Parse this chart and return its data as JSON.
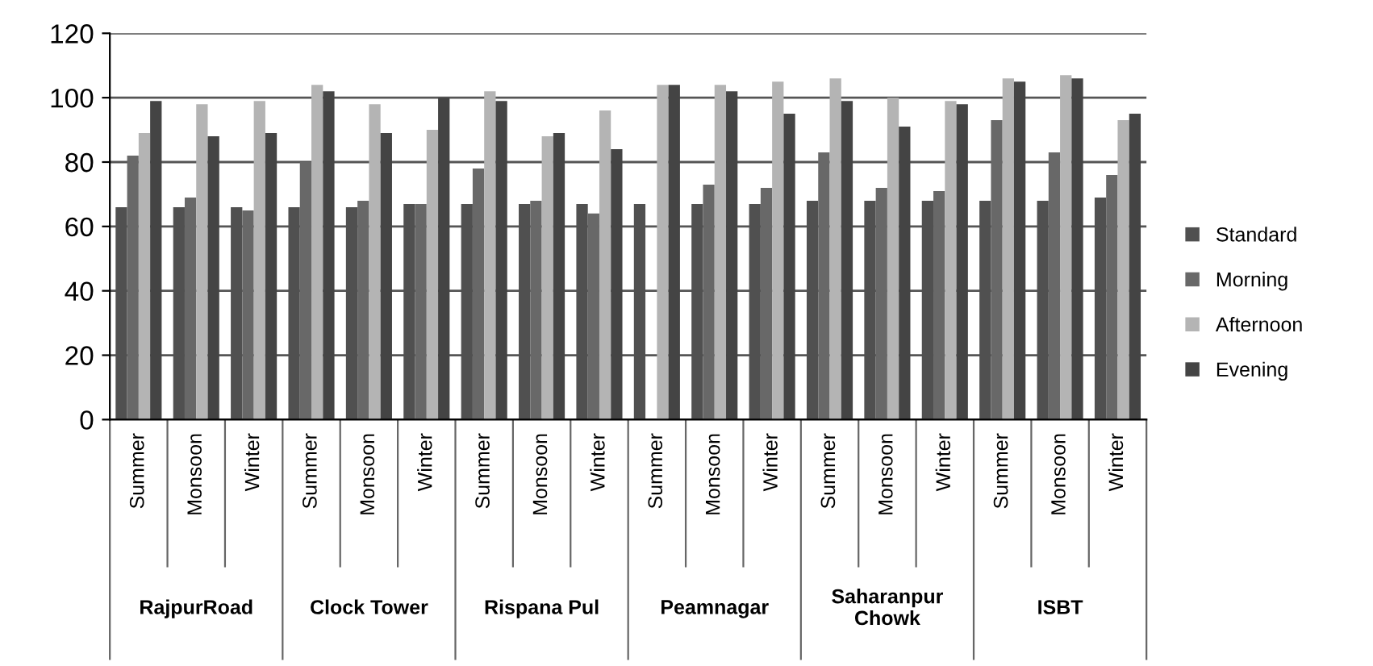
{
  "chart_data": {
    "type": "bar",
    "categories": [
      "Summer",
      "Monsoon",
      "Winter",
      "Summer",
      "Monsoon",
      "Winter",
      "Summer",
      "Monsoon",
      "Winter",
      "Summer",
      "Monsoon",
      "Winter",
      "Summer",
      "Monsoon",
      "Winter",
      "Summer",
      "Monsoon",
      "Winter"
    ],
    "series": [
      {
        "name": "Standard",
        "color": "#505050",
        "values": [
          66,
          66,
          66,
          66,
          66,
          67,
          67,
          67,
          67,
          67,
          67,
          67,
          68,
          68,
          68,
          68,
          68,
          69
        ]
      },
      {
        "name": "Morning",
        "color": "#686868",
        "values": [
          82,
          69,
          65,
          80,
          68,
          67,
          78,
          68,
          64,
          null,
          73,
          72,
          83,
          72,
          71,
          93,
          83,
          76
        ]
      },
      {
        "name": "Afternoon",
        "color": "#b4b4b4",
        "values": [
          89,
          98,
          99,
          104,
          98,
          90,
          102,
          88,
          96,
          104,
          104,
          105,
          106,
          100,
          99,
          106,
          107,
          93
        ]
      },
      {
        "name": "Evening",
        "color": "#444444",
        "values": [
          99,
          88,
          89,
          102,
          89,
          100,
          99,
          89,
          84,
          104,
          102,
          95,
          99,
          91,
          98,
          105,
          106,
          95
        ]
      }
    ],
    "annotations": [
      "RajpurRoad",
      "Clock Tower",
      "Rispana Pul",
      "Peamnagar",
      "Saharanpur\nChowk",
      "ISBT"
    ],
    "ylim": [
      0,
      120
    ],
    "yticks": [
      0,
      20,
      40,
      60,
      80,
      100,
      120
    ],
    "grid": "y",
    "legend": "right"
  }
}
